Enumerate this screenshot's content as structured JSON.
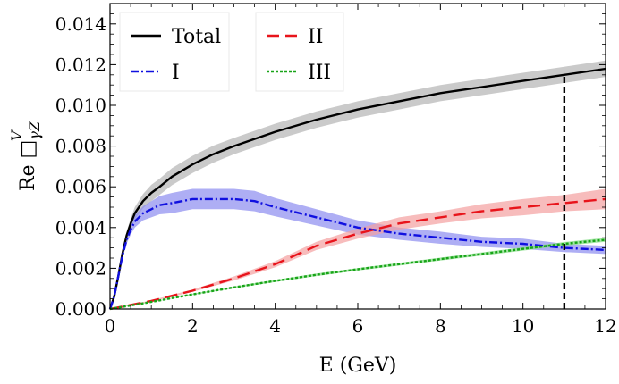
{
  "chart_data": {
    "type": "line",
    "title": "",
    "xlabel": "E (GeV)",
    "ylabel_main": "Re □",
    "ylabel_sub": "γZ",
    "ylabel_sup": "V",
    "xlim": [
      0,
      12
    ],
    "ylim": [
      0,
      0.015
    ],
    "x_ticks": [
      0,
      2,
      4,
      6,
      8,
      10,
      12
    ],
    "x_tick_labels": [
      "0",
      "2",
      "4",
      "6",
      "8",
      "10",
      "12"
    ],
    "y_ticks": [
      0,
      0.002,
      0.004,
      0.006,
      0.008,
      0.01,
      0.012,
      0.014
    ],
    "y_tick_labels": [
      "0.000",
      "0.002",
      "0.004",
      "0.006",
      "0.008",
      "0.010",
      "0.012",
      "0.014"
    ],
    "vertical_line_x": 11,
    "legend": {
      "placement": "top-left",
      "entries": [
        {
          "name": "Total",
          "color": "#000000",
          "dash": "solid"
        },
        {
          "name": "II",
          "color": "#e8141b",
          "dash": "dashed"
        },
        {
          "name": "I",
          "color": "#1010e0",
          "dash": "dashdot"
        },
        {
          "name": "III",
          "color": "#18a418",
          "dash": "dotted"
        }
      ]
    },
    "series": [
      {
        "name": "Total",
        "color": "#000000",
        "band_color": "#b4b4b4",
        "x": [
          0,
          0.1,
          0.2,
          0.3,
          0.4,
          0.5,
          0.6,
          0.8,
          1.0,
          1.2,
          1.5,
          2,
          2.5,
          3,
          4,
          5,
          6,
          7,
          8,
          9,
          10,
          11,
          12
        ],
        "y": [
          0,
          0.0006,
          0.0016,
          0.0027,
          0.0036,
          0.0042,
          0.0047,
          0.0053,
          0.0057,
          0.006,
          0.0065,
          0.0071,
          0.0076,
          0.008,
          0.0087,
          0.0093,
          0.0098,
          0.0102,
          0.0106,
          0.0109,
          0.0112,
          0.0115,
          0.0118
        ],
        "band_half_width": [
          0,
          5e-05,
          0.0001,
          0.00015,
          0.0002,
          0.00025,
          0.0003,
          0.00035,
          0.0004,
          0.0004,
          0.00042,
          0.00042,
          0.00042,
          0.0004,
          0.0004,
          0.0004,
          0.0004,
          0.0004,
          0.0004,
          0.0004,
          0.0004,
          0.0004,
          0.0004
        ]
      },
      {
        "name": "I",
        "color": "#1010e0",
        "band_color": "#8c8cf0",
        "x": [
          0,
          0.1,
          0.2,
          0.3,
          0.4,
          0.5,
          0.6,
          0.8,
          1.0,
          1.2,
          1.5,
          2,
          2.5,
          3,
          3.5,
          4,
          5,
          6,
          7,
          8,
          9,
          10,
          11,
          12
        ],
        "y": [
          0,
          0.0006,
          0.0016,
          0.0026,
          0.0034,
          0.0039,
          0.0043,
          0.0047,
          0.0049,
          0.0051,
          0.0052,
          0.0054,
          0.0054,
          0.0054,
          0.0053,
          0.005,
          0.0045,
          0.004,
          0.0037,
          0.0035,
          0.0033,
          0.0032,
          0.003,
          0.0029
        ],
        "band_half_width": [
          0,
          5e-05,
          0.0001,
          0.00015,
          0.0002,
          0.00025,
          0.0003,
          0.00035,
          0.0004,
          0.00045,
          0.0005,
          0.0005,
          0.0005,
          0.0005,
          0.0005,
          0.00045,
          0.0004,
          0.00035,
          0.0003,
          0.0003,
          0.00025,
          0.00025,
          0.0002,
          0.0002
        ]
      },
      {
        "name": "II",
        "color": "#e8141b",
        "band_color": "#f4a0a0",
        "x": [
          0,
          1,
          2,
          3,
          4,
          5,
          6,
          7,
          8,
          9,
          10,
          11,
          12
        ],
        "y": [
          0,
          0.0004,
          0.0009,
          0.0015,
          0.0022,
          0.0031,
          0.0037,
          0.0042,
          0.0045,
          0.0048,
          0.005,
          0.0052,
          0.0054
        ],
        "band_half_width": [
          0,
          3e-05,
          6e-05,
          0.0001,
          0.00015,
          0.0002,
          0.00025,
          0.0003,
          0.0003,
          0.00035,
          0.0004,
          0.0004,
          0.0005
        ]
      },
      {
        "name": "III",
        "color": "#18a418",
        "band_color": "#7ddc7d",
        "x": [
          0,
          1,
          2,
          3,
          4,
          5,
          6,
          7,
          8,
          9,
          10,
          11,
          12
        ],
        "y": [
          0,
          0.00035,
          0.00072,
          0.00106,
          0.00138,
          0.00168,
          0.00195,
          0.0022,
          0.00245,
          0.0027,
          0.00295,
          0.0032,
          0.0034
        ],
        "band_half_width": [
          0,
          2e-05,
          3e-05,
          4e-05,
          5e-05,
          6e-05,
          6e-05,
          7e-05,
          7e-05,
          8e-05,
          8e-05,
          9e-05,
          0.0001
        ]
      }
    ]
  }
}
